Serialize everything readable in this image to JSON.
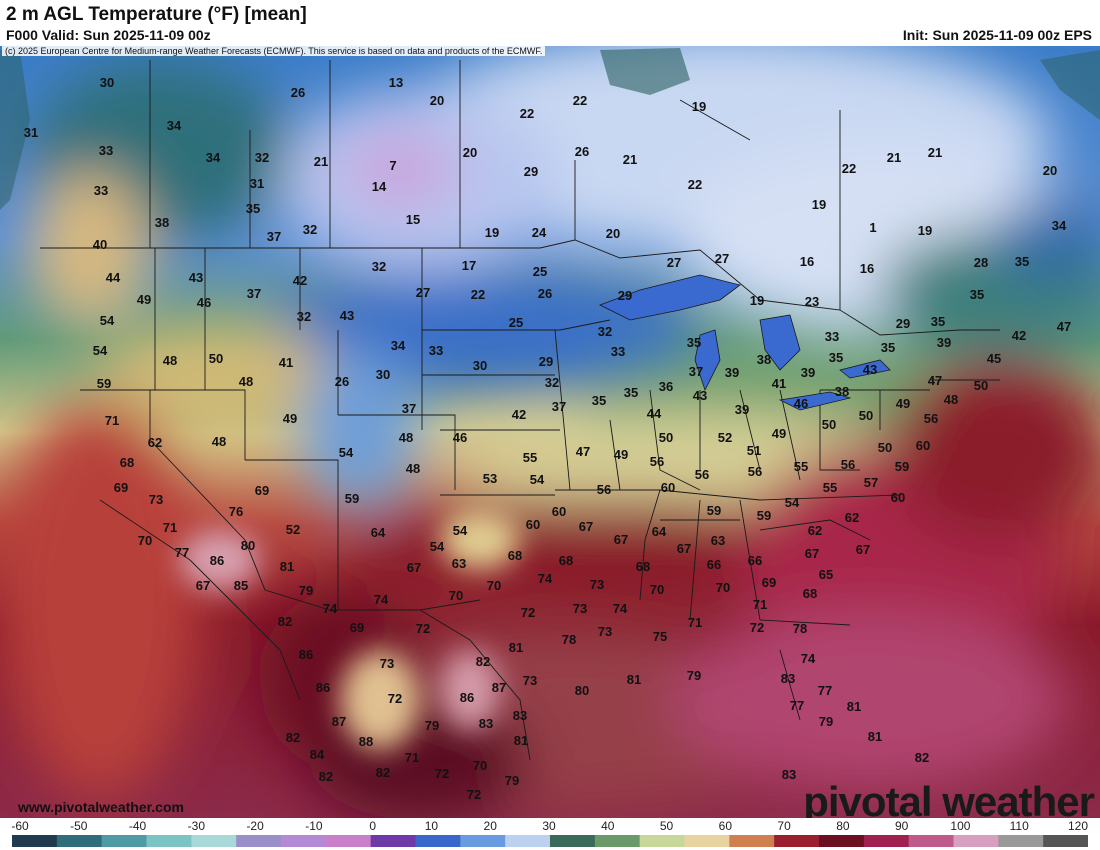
{
  "header": {
    "title": "2 m AGL Temperature (°F) [mean]",
    "valid": "F000 Valid: Sun 2025-11-09 00z",
    "init": "Init: Sun 2025-11-09 00z EPS"
  },
  "copyright": "(c) 2025 European Centre for Medium-range Weather Forecasts (ECMWF). This service is based on data and products of the ECMWF.",
  "footer": {
    "site": "www.pivotalweather.com",
    "logo": "pivotal weather"
  },
  "colorbar": {
    "ticks": [
      "-60",
      "-50",
      "-40",
      "-30",
      "-20",
      "-10",
      "0",
      "10",
      "20",
      "30",
      "40",
      "50",
      "60",
      "70",
      "80",
      "90",
      "100",
      "110",
      "120"
    ],
    "colors": [
      "#1f3b4d",
      "#2f6d7a",
      "#4f9aa3",
      "#7cc4c4",
      "#a8d8d8",
      "#9b8fc9",
      "#b48ad6",
      "#c97fc9",
      "#6e3aa8",
      "#3a67c9",
      "#6a9ae0",
      "#bcd0f0",
      "#3a6b5a",
      "#6a9a6a",
      "#c8d89a",
      "#e8d4a0",
      "#d08050",
      "#9a1f2f",
      "#6b1020",
      "#a02050",
      "#c05a8a",
      "#d8a0c0",
      "#999999",
      "#555555"
    ]
  },
  "temperatures": [
    [
      "30",
      107,
      82
    ],
    [
      "31",
      31,
      132
    ],
    [
      "34",
      174,
      125
    ],
    [
      "26",
      298,
      92
    ],
    [
      "13",
      396,
      82
    ],
    [
      "20",
      437,
      100
    ],
    [
      "22",
      527,
      113
    ],
    [
      "22",
      580,
      100
    ],
    [
      "33",
      106,
      150
    ],
    [
      "34",
      213,
      157
    ],
    [
      "32",
      262,
      157
    ],
    [
      "21",
      321,
      161
    ],
    [
      "7",
      393,
      165
    ],
    [
      "20",
      470,
      152
    ],
    [
      "26",
      582,
      151
    ],
    [
      "21",
      630,
      159
    ],
    [
      "33",
      101,
      190
    ],
    [
      "31",
      257,
      183
    ],
    [
      "14",
      379,
      186
    ],
    [
      "29",
      531,
      171
    ],
    [
      "22",
      695,
      184
    ],
    [
      "19",
      699,
      106
    ],
    [
      "21",
      894,
      157
    ],
    [
      "21",
      935,
      152
    ],
    [
      "22",
      849,
      168
    ],
    [
      "20",
      1050,
      170
    ],
    [
      "38",
      162,
      222
    ],
    [
      "35",
      253,
      208
    ],
    [
      "15",
      413,
      219
    ],
    [
      "19",
      492,
      232
    ],
    [
      "24",
      539,
      232
    ],
    [
      "20",
      613,
      233
    ],
    [
      "19",
      819,
      204
    ],
    [
      "1",
      873,
      227
    ],
    [
      "19",
      925,
      230
    ],
    [
      "34",
      1059,
      225
    ],
    [
      "40",
      100,
      244
    ],
    [
      "37",
      274,
      236
    ],
    [
      "32",
      310,
      229
    ],
    [
      "17",
      469,
      265
    ],
    [
      "25",
      540,
      271
    ],
    [
      "27",
      674,
      262
    ],
    [
      "27",
      722,
      258
    ],
    [
      "16",
      807,
      261
    ],
    [
      "16",
      867,
      268
    ],
    [
      "28",
      981,
      262
    ],
    [
      "35",
      1022,
      261
    ],
    [
      "44",
      113,
      277
    ],
    [
      "43",
      196,
      277
    ],
    [
      "42",
      300,
      280
    ],
    [
      "32",
      379,
      266
    ],
    [
      "49",
      144,
      299
    ],
    [
      "46",
      204,
      302
    ],
    [
      "37",
      254,
      293
    ],
    [
      "27",
      423,
      292
    ],
    [
      "22",
      478,
      294
    ],
    [
      "26",
      545,
      293
    ],
    [
      "29",
      625,
      295
    ],
    [
      "19",
      757,
      300
    ],
    [
      "23",
      812,
      301
    ],
    [
      "35",
      977,
      294
    ],
    [
      "54",
      107,
      320
    ],
    [
      "32",
      304,
      316
    ],
    [
      "43",
      347,
      315
    ],
    [
      "25",
      516,
      322
    ],
    [
      "32",
      605,
      331
    ],
    [
      "29",
      903,
      323
    ],
    [
      "35",
      938,
      321
    ],
    [
      "42",
      1019,
      335
    ],
    [
      "47",
      1064,
      326
    ],
    [
      "54",
      100,
      350
    ],
    [
      "48",
      170,
      360
    ],
    [
      "50",
      216,
      358
    ],
    [
      "41",
      286,
      362
    ],
    [
      "34",
      398,
      345
    ],
    [
      "33",
      436,
      350
    ],
    [
      "30",
      480,
      365
    ],
    [
      "29",
      546,
      361
    ],
    [
      "33",
      618,
      351
    ],
    [
      "35",
      694,
      342
    ],
    [
      "38",
      764,
      359
    ],
    [
      "33",
      832,
      336
    ],
    [
      "35",
      836,
      357
    ],
    [
      "35",
      888,
      347
    ],
    [
      "39",
      944,
      342
    ],
    [
      "45",
      994,
      358
    ],
    [
      "59",
      104,
      383
    ],
    [
      "48",
      246,
      381
    ],
    [
      "26",
      342,
      381
    ],
    [
      "30",
      383,
      374
    ],
    [
      "32",
      552,
      382
    ],
    [
      "36",
      666,
      386
    ],
    [
      "37",
      696,
      371
    ],
    [
      "39",
      732,
      372
    ],
    [
      "41",
      779,
      383
    ],
    [
      "39",
      808,
      372
    ],
    [
      "43",
      870,
      369
    ],
    [
      "47",
      935,
      380
    ],
    [
      "50",
      981,
      385
    ],
    [
      "71",
      112,
      420
    ],
    [
      "49",
      290,
      418
    ],
    [
      "37",
      409,
      408
    ],
    [
      "42",
      519,
      414
    ],
    [
      "37",
      559,
      406
    ],
    [
      "35",
      599,
      400
    ],
    [
      "35",
      631,
      392
    ],
    [
      "44",
      654,
      413
    ],
    [
      "43",
      700,
      395
    ],
    [
      "39",
      742,
      409
    ],
    [
      "46",
      801,
      403
    ],
    [
      "38",
      842,
      391
    ],
    [
      "49",
      903,
      403
    ],
    [
      "48",
      951,
      399
    ],
    [
      "56",
      931,
      418
    ],
    [
      "62",
      155,
      442
    ],
    [
      "48",
      219,
      441
    ],
    [
      "48",
      406,
      437
    ],
    [
      "46",
      460,
      437
    ],
    [
      "50",
      666,
      437
    ],
    [
      "52",
      725,
      437
    ],
    [
      "49",
      779,
      433
    ],
    [
      "50",
      829,
      424
    ],
    [
      "50",
      866,
      415
    ],
    [
      "60",
      923,
      445
    ],
    [
      "68",
      127,
      462
    ],
    [
      "54",
      346,
      452
    ],
    [
      "55",
      530,
      457
    ],
    [
      "47",
      583,
      451
    ],
    [
      "49",
      621,
      454
    ],
    [
      "56",
      657,
      461
    ],
    [
      "51",
      754,
      450
    ],
    [
      "50",
      885,
      447
    ],
    [
      "69",
      121,
      487
    ],
    [
      "48",
      413,
      468
    ],
    [
      "53",
      490,
      478
    ],
    [
      "54",
      537,
      479
    ],
    [
      "56",
      604,
      489
    ],
    [
      "56",
      702,
      474
    ],
    [
      "56",
      755,
      471
    ],
    [
      "55",
      801,
      466
    ],
    [
      "56",
      848,
      464
    ],
    [
      "57",
      871,
      482
    ],
    [
      "59",
      902,
      466
    ],
    [
      "73",
      156,
      499
    ],
    [
      "69",
      262,
      490
    ],
    [
      "59",
      352,
      498
    ],
    [
      "60",
      668,
      487
    ],
    [
      "54",
      792,
      502
    ],
    [
      "55",
      830,
      487
    ],
    [
      "60",
      898,
      497
    ],
    [
      "71",
      170,
      527
    ],
    [
      "76",
      236,
      511
    ],
    [
      "52",
      293,
      529
    ],
    [
      "64",
      378,
      532
    ],
    [
      "54",
      460,
      530
    ],
    [
      "60",
      533,
      524
    ],
    [
      "60",
      559,
      511
    ],
    [
      "67",
      586,
      526
    ],
    [
      "59",
      714,
      510
    ],
    [
      "59",
      764,
      515
    ],
    [
      "62",
      815,
      530
    ],
    [
      "62",
      852,
      517
    ],
    [
      "70",
      145,
      540
    ],
    [
      "77",
      182,
      552
    ],
    [
      "80",
      248,
      545
    ],
    [
      "86",
      217,
      560
    ],
    [
      "54",
      437,
      546
    ],
    [
      "63",
      459,
      563
    ],
    [
      "68",
      515,
      555
    ],
    [
      "68",
      566,
      560
    ],
    [
      "67",
      621,
      539
    ],
    [
      "64",
      659,
      531
    ],
    [
      "67",
      684,
      548
    ],
    [
      "63",
      718,
      540
    ],
    [
      "67",
      812,
      553
    ],
    [
      "67",
      863,
      549
    ],
    [
      "67",
      203,
      585
    ],
    [
      "85",
      241,
      585
    ],
    [
      "81",
      287,
      566
    ],
    [
      "67",
      414,
      567
    ],
    [
      "66",
      714,
      564
    ],
    [
      "66",
      755,
      560
    ],
    [
      "65",
      826,
      574
    ],
    [
      "79",
      306,
      590
    ],
    [
      "70",
      456,
      595
    ],
    [
      "70",
      494,
      585
    ],
    [
      "74",
      545,
      578
    ],
    [
      "73",
      597,
      584
    ],
    [
      "68",
      643,
      566
    ],
    [
      "70",
      657,
      589
    ],
    [
      "70",
      723,
      587
    ],
    [
      "69",
      769,
      582
    ],
    [
      "68",
      810,
      593
    ],
    [
      "74",
      330,
      608
    ],
    [
      "74",
      381,
      599
    ],
    [
      "72",
      528,
      612
    ],
    [
      "73",
      580,
      608
    ],
    [
      "74",
      620,
      608
    ],
    [
      "71",
      760,
      604
    ],
    [
      "82",
      285,
      621
    ],
    [
      "69",
      357,
      627
    ],
    [
      "72",
      423,
      628
    ],
    [
      "78",
      569,
      639
    ],
    [
      "73",
      605,
      631
    ],
    [
      "75",
      660,
      636
    ],
    [
      "71",
      695,
      622
    ],
    [
      "72",
      757,
      627
    ],
    [
      "78",
      800,
      628
    ],
    [
      "86",
      306,
      654
    ],
    [
      "82",
      483,
      661
    ],
    [
      "81",
      516,
      647
    ],
    [
      "79",
      694,
      675
    ],
    [
      "74",
      808,
      658
    ],
    [
      "86",
      323,
      687
    ],
    [
      "73",
      387,
      663
    ],
    [
      "87",
      499,
      687
    ],
    [
      "80",
      582,
      690
    ],
    [
      "81",
      634,
      679
    ],
    [
      "73",
      530,
      680
    ],
    [
      "83",
      788,
      678
    ],
    [
      "77",
      825,
      690
    ],
    [
      "87",
      339,
      721
    ],
    [
      "72",
      395,
      698
    ],
    [
      "86",
      467,
      697
    ],
    [
      "83",
      520,
      715
    ],
    [
      "83",
      486,
      723
    ],
    [
      "79",
      432,
      725
    ],
    [
      "77",
      797,
      705
    ],
    [
      "79",
      826,
      721
    ],
    [
      "81",
      854,
      706
    ],
    [
      "82",
      293,
      737
    ],
    [
      "88",
      366,
      741
    ],
    [
      "84",
      317,
      754
    ],
    [
      "81",
      521,
      740
    ],
    [
      "81",
      875,
      736
    ],
    [
      "82",
      922,
      757
    ],
    [
      "82",
      326,
      776
    ],
    [
      "82",
      383,
      772
    ],
    [
      "71",
      412,
      757
    ],
    [
      "72",
      442,
      773
    ],
    [
      "70",
      480,
      765
    ],
    [
      "79",
      512,
      780
    ],
    [
      "83",
      789,
      774
    ],
    [
      "72",
      474,
      794
    ]
  ]
}
